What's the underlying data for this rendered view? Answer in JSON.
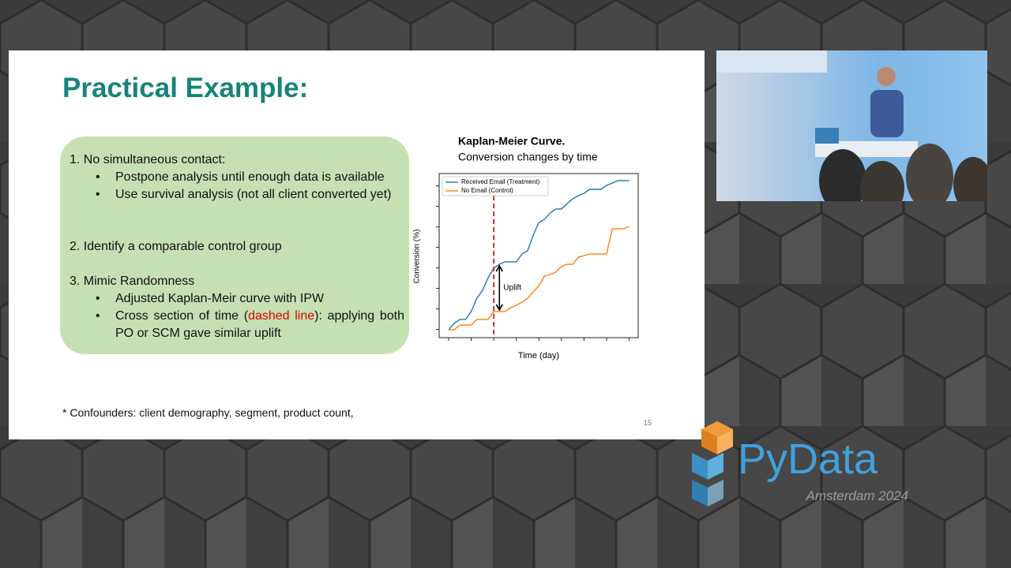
{
  "slide": {
    "title": "Practical Example:",
    "content": [
      {
        "heading": "1. No simultaneous contact:",
        "bullets": [
          [
            {
              "text": "Postpone analysis until enough data is available"
            }
          ],
          [
            {
              "text": "Use survival analysis (not all client converted yet)"
            }
          ]
        ]
      },
      {
        "heading": "2. Identify a comparable control group",
        "bullets": []
      },
      {
        "heading": "3. Mimic Randomness",
        "bullets": [
          [
            {
              "text": "Adjusted Kaplan-Meir curve with IPW"
            }
          ],
          [
            {
              "text": "Cross section of time ("
            },
            {
              "text": "dashed line",
              "color": "#e00000"
            },
            {
              "text": "): applying both PO or SCM gave similar uplift"
            }
          ]
        ]
      }
    ],
    "footnote": "* Confounders: client demography, segment, product count,",
    "page_number": "15"
  },
  "chart_data": {
    "type": "line",
    "title": "Kaplan-Meier Curve.",
    "subtitle": "Conversion changes by time",
    "x_label": "Time (day)",
    "y_label": "Conversion (%)",
    "annotation": "Uplift",
    "legend": "upper left",
    "x": [
      0,
      0.25,
      0.5,
      0.75,
      1,
      1.25,
      1.5,
      1.75,
      2,
      2.25,
      2.5,
      2.75,
      3,
      3.25,
      3.5,
      3.75,
      4,
      4.25,
      4.5,
      4.75,
      5,
      5.25,
      5.5,
      5.75,
      6,
      6.25,
      6.5,
      6.75,
      7,
      7.25,
      7.5,
      7.75,
      8
    ],
    "series": [
      {
        "name": "Received Email (Treatment)",
        "color": "#1f77b4",
        "values": [
          4.8,
          8.7,
          11.1,
          11.1,
          15.9,
          24.0,
          28.8,
          36.5,
          42.3,
          44.7,
          46.2,
          46.2,
          46.2,
          51.0,
          52.9,
          62.5,
          70.2,
          72.1,
          76.0,
          78.4,
          78.4,
          81.7,
          84.6,
          86.5,
          88.0,
          90.4,
          90.4,
          90.4,
          92.8,
          94.2,
          95.7,
          95.7,
          95.7
        ]
      },
      {
        "name": "No Email (Control)",
        "color": "#ff7f0e",
        "values": [
          4.8,
          4.8,
          7.7,
          7.7,
          7.7,
          11.1,
          11.1,
          11.1,
          15.9,
          15.9,
          15.9,
          18.3,
          19.7,
          21.6,
          24.0,
          27.9,
          31.7,
          37.5,
          38.5,
          39.9,
          43.3,
          44.7,
          44.7,
          49.0,
          50.0,
          51.0,
          51.0,
          51.0,
          51.0,
          66.3,
          66.3,
          66.3,
          67.8
        ]
      }
    ],
    "marker_x": 2,
    "marker_color": "#d62728",
    "xlim": [
      -0.42,
      8.4
    ],
    "ylim": [
      0,
      100
    ],
    "xticks": [
      0,
      1,
      2,
      3,
      4,
      5,
      6,
      7,
      8
    ],
    "yticks": [
      5,
      17.5,
      30,
      42.5,
      55,
      67.5,
      80,
      92.5
    ]
  },
  "logo": {
    "name": "PyData",
    "event": "Amsterdam 2024"
  }
}
